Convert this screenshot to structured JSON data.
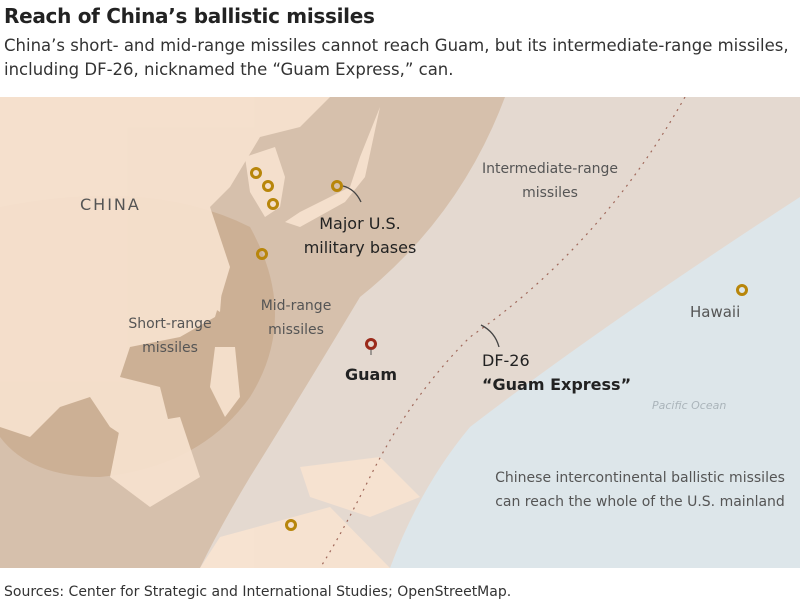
{
  "header": {
    "title": "Reach of China’s ballistic missiles",
    "subtitle": "China’s short- and mid-range missiles cannot reach Guam, but its intermediate-range missiles, including DF-26, nicknamed the “Guam Express,” can."
  },
  "map": {
    "labels": {
      "china": "CHINA",
      "bases_line1": "Major U.S.",
      "bases_line2": "military bases",
      "short_line1": "Short-range",
      "short_line2": "missiles",
      "mid_line1": "Mid-range",
      "mid_line2": "missiles",
      "inter_line1": "Intermediate-range",
      "inter_line2": "missiles",
      "guam": "Guam",
      "df26_line1": "DF-26",
      "df26_line2": "“Guam Express”",
      "hawaii": "Hawaii",
      "ocean": "Pacific Ocean",
      "icbm_line1": "Chinese intercontinental ballistic missiles",
      "icbm_line2": "can reach the whole of the U.S. mainland"
    },
    "colors": {
      "land": "#f8e3d0",
      "ocean": "#dde6ea",
      "short_range": "#c9ab90",
      "mid_range": "#d6c0ac",
      "intermediate_range": "#e4d9d0",
      "base_marker": "#b8860b",
      "guam_marker": "#9b2a1a",
      "df26_line": "#a0685a"
    }
  },
  "footer": {
    "source": "Sources: Center for Strategic and International Studies; OpenStreetMap."
  }
}
